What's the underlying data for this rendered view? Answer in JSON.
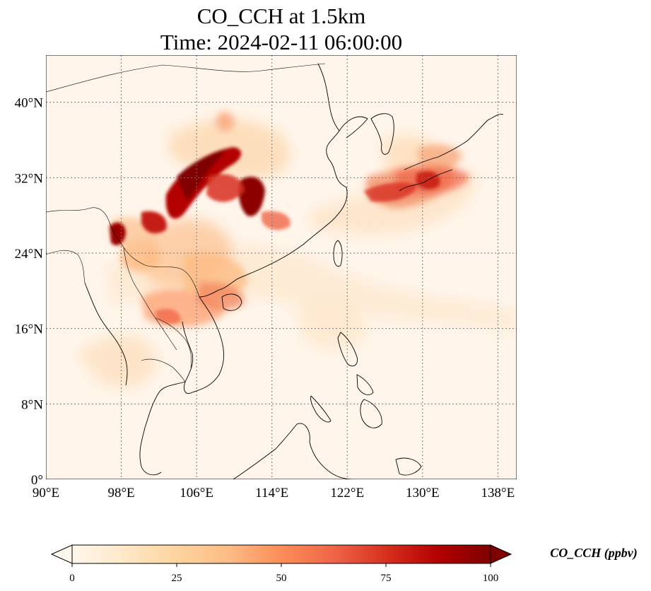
{
  "title": {
    "line1": "CO_CCH at 1.5km",
    "line2": "Time: 2024-02-11 06:00:00"
  },
  "map": {
    "projection": "PlateCarree",
    "lon_range": [
      90,
      140
    ],
    "lat_range": [
      0,
      45
    ],
    "gridlines": "dotted",
    "coastlines": true,
    "borders": true,
    "field_colormap": "OrRd",
    "x_ticks": [
      {
        "value": 90,
        "label": "90°E"
      },
      {
        "value": 98,
        "label": "98°E"
      },
      {
        "value": 106,
        "label": "106°E"
      },
      {
        "value": 114,
        "label": "114°E"
      },
      {
        "value": 122,
        "label": "122°E"
      },
      {
        "value": 130,
        "label": "130°E"
      },
      {
        "value": 138,
        "label": "138°E"
      }
    ],
    "y_ticks": [
      {
        "value": 0,
        "label": "0°"
      },
      {
        "value": 8,
        "label": "8°N"
      },
      {
        "value": 16,
        "label": "16°N"
      },
      {
        "value": 24,
        "label": "24°N"
      },
      {
        "value": 32,
        "label": "32°N"
      },
      {
        "value": 40,
        "label": "40°N"
      }
    ]
  },
  "colorbar": {
    "label": "CO_CCH (ppbv)",
    "vmin": 0,
    "vmax": 100,
    "extend": "both",
    "ticks": [
      {
        "value": 0,
        "label": "0"
      },
      {
        "value": 25,
        "label": "25"
      },
      {
        "value": 50,
        "label": "50"
      },
      {
        "value": 75,
        "label": "75"
      },
      {
        "value": 100,
        "label": "100"
      }
    ],
    "colors": [
      "#fff7ec",
      "#fee8c8",
      "#fdd49e",
      "#fdbb84",
      "#fc8d59",
      "#ef6548",
      "#d7301f",
      "#b30000",
      "#7f0000"
    ]
  }
}
